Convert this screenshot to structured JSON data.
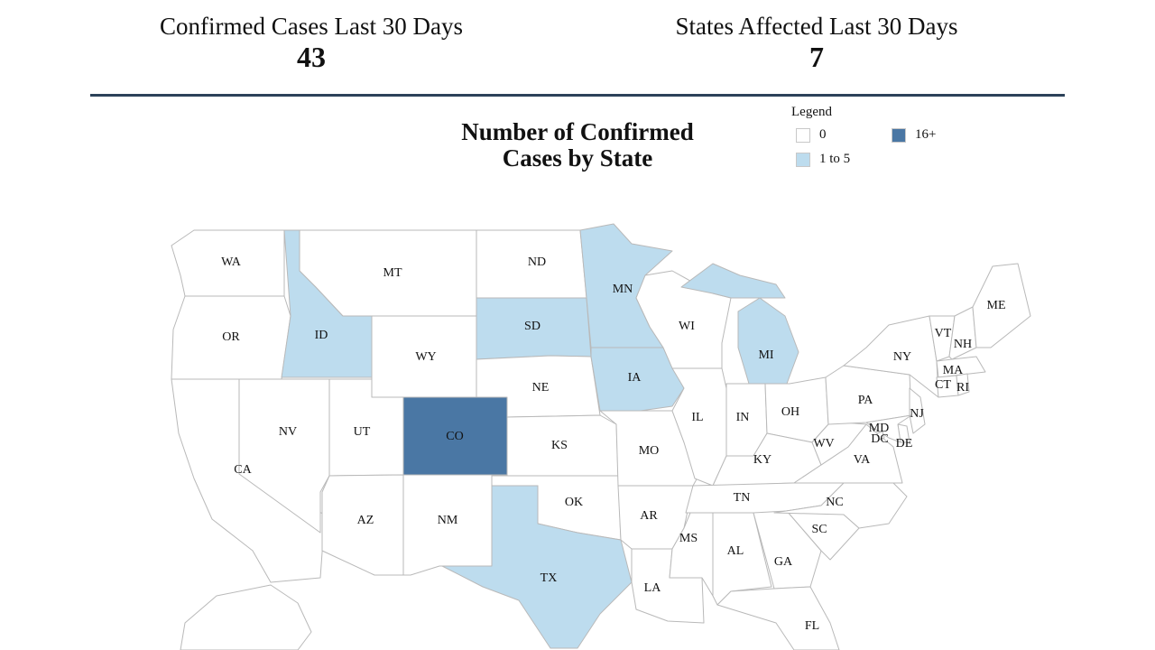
{
  "stats": {
    "cases": {
      "label": "Confirmed Cases Last 30 Days",
      "value": "43"
    },
    "states": {
      "label": "States Affected Last 30 Days",
      "value": "7"
    }
  },
  "map": {
    "title_line1": "Number of Confirmed",
    "title_line2": "Cases by State",
    "legend": {
      "title": "Legend",
      "items": [
        {
          "label": "0",
          "color": "#ffffff"
        },
        {
          "label": "1 to 5",
          "color": "#bddcee"
        },
        {
          "label": "16+",
          "color": "#4a77a4"
        }
      ]
    },
    "states": [
      {
        "code": "WA",
        "category": "0"
      },
      {
        "code": "OR",
        "category": "0"
      },
      {
        "code": "CA",
        "category": "0"
      },
      {
        "code": "NV",
        "category": "0"
      },
      {
        "code": "ID",
        "category": "1 to 5"
      },
      {
        "code": "MT",
        "category": "0"
      },
      {
        "code": "WY",
        "category": "0"
      },
      {
        "code": "UT",
        "category": "0"
      },
      {
        "code": "AZ",
        "category": "0"
      },
      {
        "code": "CO",
        "category": "16+"
      },
      {
        "code": "NM",
        "category": "0"
      },
      {
        "code": "ND",
        "category": "0"
      },
      {
        "code": "SD",
        "category": "1 to 5"
      },
      {
        "code": "NE",
        "category": "0"
      },
      {
        "code": "KS",
        "category": "0"
      },
      {
        "code": "OK",
        "category": "0"
      },
      {
        "code": "TX",
        "category": "1 to 5"
      },
      {
        "code": "MN",
        "category": "1 to 5"
      },
      {
        "code": "IA",
        "category": "1 to 5"
      },
      {
        "code": "MO",
        "category": "0"
      },
      {
        "code": "AR",
        "category": "0"
      },
      {
        "code": "LA",
        "category": "0"
      },
      {
        "code": "WI",
        "category": "0"
      },
      {
        "code": "IL",
        "category": "0"
      },
      {
        "code": "MI",
        "category": "1 to 5"
      },
      {
        "code": "IN",
        "category": "0"
      },
      {
        "code": "OH",
        "category": "0"
      },
      {
        "code": "KY",
        "category": "0"
      },
      {
        "code": "TN",
        "category": "0"
      },
      {
        "code": "MS",
        "category": "0"
      },
      {
        "code": "AL",
        "category": "0"
      },
      {
        "code": "GA",
        "category": "0"
      },
      {
        "code": "FL",
        "category": "0"
      },
      {
        "code": "SC",
        "category": "0"
      },
      {
        "code": "NC",
        "category": "0"
      },
      {
        "code": "VA",
        "category": "0"
      },
      {
        "code": "WV",
        "category": "0"
      },
      {
        "code": "PA",
        "category": "0"
      },
      {
        "code": "NY",
        "category": "0"
      },
      {
        "code": "NJ",
        "category": "0"
      },
      {
        "code": "DE",
        "category": "0"
      },
      {
        "code": "MD",
        "category": "0"
      },
      {
        "code": "DC",
        "category": "0"
      },
      {
        "code": "VT",
        "category": "0"
      },
      {
        "code": "NH",
        "category": "0"
      },
      {
        "code": "ME",
        "category": "0"
      },
      {
        "code": "MA",
        "category": "0"
      },
      {
        "code": "CT",
        "category": "0"
      },
      {
        "code": "RI",
        "category": "0"
      }
    ]
  }
}
